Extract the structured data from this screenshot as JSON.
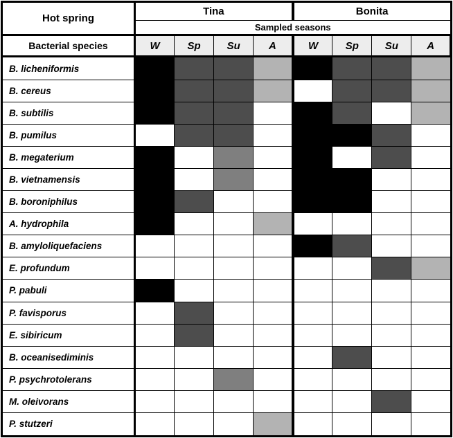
{
  "figure": {
    "corner_header": "Hot spring",
    "species_header": "Bacterial species",
    "seasons_header": "Sampled seasons",
    "springs": [
      "Tina",
      "Bonita"
    ],
    "season_labels": [
      "W",
      "Sp",
      "Su",
      "A"
    ]
  },
  "colors": {
    "border": "#000000",
    "season_header_bg": "#ededed",
    "heat_levels": [
      "#ffffff",
      "#b3b3b3",
      "#7f7f7f",
      "#4d4d4d",
      "#000000"
    ]
  },
  "chart_data": {
    "type": "heatmap",
    "title": "",
    "row_header": "Bacterial species",
    "column_groups": [
      {
        "name": "Tina",
        "columns": [
          "W",
          "Sp",
          "Su",
          "A"
        ]
      },
      {
        "name": "Bonita",
        "columns": [
          "W",
          "Sp",
          "Su",
          "A"
        ]
      }
    ],
    "columns": [
      "Tina-W",
      "Tina-Sp",
      "Tina-Su",
      "Tina-A",
      "Bonita-W",
      "Bonita-Sp",
      "Bonita-Su",
      "Bonita-A"
    ],
    "rows": [
      "B. licheniformis",
      "B. cereus",
      "B. subtilis",
      "B. pumilus",
      "B. megaterium",
      "B. vietnamensis",
      "B. boroniphilus",
      "A. hydrophila",
      "B. amyloliquefaciens",
      "E. profundum",
      "P. pabuli",
      "P. favisporus",
      "E. sibiricum",
      "B. oceanisediminis",
      "P. psychrotolerans",
      "M. oleivorans",
      "P. stutzeri"
    ],
    "values": [
      [
        4,
        3,
        3,
        1,
        4,
        3,
        3,
        1
      ],
      [
        4,
        3,
        3,
        1,
        0,
        3,
        3,
        1
      ],
      [
        4,
        3,
        3,
        0,
        4,
        3,
        0,
        1
      ],
      [
        0,
        3,
        3,
        0,
        4,
        4,
        3,
        0
      ],
      [
        4,
        0,
        2,
        0,
        4,
        0,
        3,
        0
      ],
      [
        4,
        0,
        2,
        0,
        4,
        4,
        0,
        0
      ],
      [
        4,
        3,
        0,
        0,
        4,
        4,
        0,
        0
      ],
      [
        4,
        0,
        0,
        1,
        0,
        0,
        0,
        0
      ],
      [
        0,
        0,
        0,
        0,
        4,
        3,
        0,
        0
      ],
      [
        0,
        0,
        0,
        0,
        0,
        0,
        3,
        1
      ],
      [
        4,
        0,
        0,
        0,
        0,
        0,
        0,
        0
      ],
      [
        0,
        3,
        0,
        0,
        0,
        0,
        0,
        0
      ],
      [
        0,
        3,
        0,
        0,
        0,
        0,
        0,
        0
      ],
      [
        0,
        0,
        0,
        0,
        0,
        3,
        0,
        0
      ],
      [
        0,
        0,
        2,
        0,
        0,
        0,
        0,
        0
      ],
      [
        0,
        0,
        0,
        0,
        0,
        0,
        3,
        0
      ],
      [
        0,
        0,
        0,
        1,
        0,
        0,
        0,
        0
      ]
    ],
    "value_scale": {
      "0": "#ffffff",
      "1": "#b3b3b3",
      "2": "#7f7f7f",
      "3": "#4d4d4d",
      "4": "#000000"
    },
    "legend_position": "none",
    "grid": true
  }
}
